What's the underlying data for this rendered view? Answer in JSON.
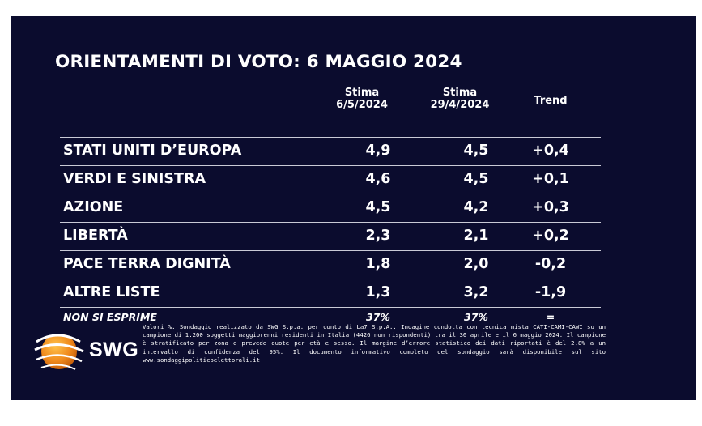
{
  "title": "ORIENTAMENTI DI VOTO: 6 MAGGIO 2024",
  "columns": [
    {
      "line1": "Stima",
      "line2": "6/5/2024"
    },
    {
      "line1": "Stima",
      "line2": "29/4/2024"
    },
    {
      "line1": "Trend",
      "line2": ""
    }
  ],
  "rows": [
    {
      "party": "STATI UNITI D’EUROPA",
      "stima_6_5": "4,9",
      "stima_29_4": "4,5",
      "trend": "+0,4"
    },
    {
      "party": "VERDI E SINISTRA",
      "stima_6_5": "4,6",
      "stima_29_4": "4,5",
      "trend": "+0,1"
    },
    {
      "party": "AZIONE",
      "stima_6_5": "4,5",
      "stima_29_4": "4,2",
      "trend": "+0,3"
    },
    {
      "party": "LIBERTÀ",
      "stima_6_5": "2,3",
      "stima_29_4": "2,1",
      "trend": "+0,2"
    },
    {
      "party": "PACE TERRA DIGNITÀ",
      "stima_6_5": "1,8",
      "stima_29_4": "2,0",
      "trend": "-0,2"
    },
    {
      "party": "ALTRE LISTE",
      "stima_6_5": "1,3",
      "stima_29_4": "3,2",
      "trend": "-1,9"
    },
    {
      "party": "NON SI ESPRIME",
      "stima_6_5": "37%",
      "stima_29_4": "37%",
      "trend": "="
    }
  ],
  "logo": {
    "text": "SWG"
  },
  "footnote": "Valori %. Sondaggio realizzato da SWG S.p.a. per conto di La7 S.p.A.. Indagine condotta con tecnica mista CATI-CAMI-CAWI su un campione di 1.200 soggetti maggiorenni residenti in Italia (4426 non rispondenti) tra il 30 aprile e il 6 maggio 2024. Il campione è stratificato per zona e prevede quote per età e sesso. Il margine d’errore statistico dei dati riportati è del 2,8% a un intervallo di confidenza del 95%. Il documento informativo completo del sondaggio sarà disponibile sul sito www.sondaggipoliticoelettorali.it",
  "colors": {
    "background": "#0b0c2e",
    "text": "#ffffff",
    "rule": "#c9cad6",
    "logo_orange": "#f08a1c"
  }
}
